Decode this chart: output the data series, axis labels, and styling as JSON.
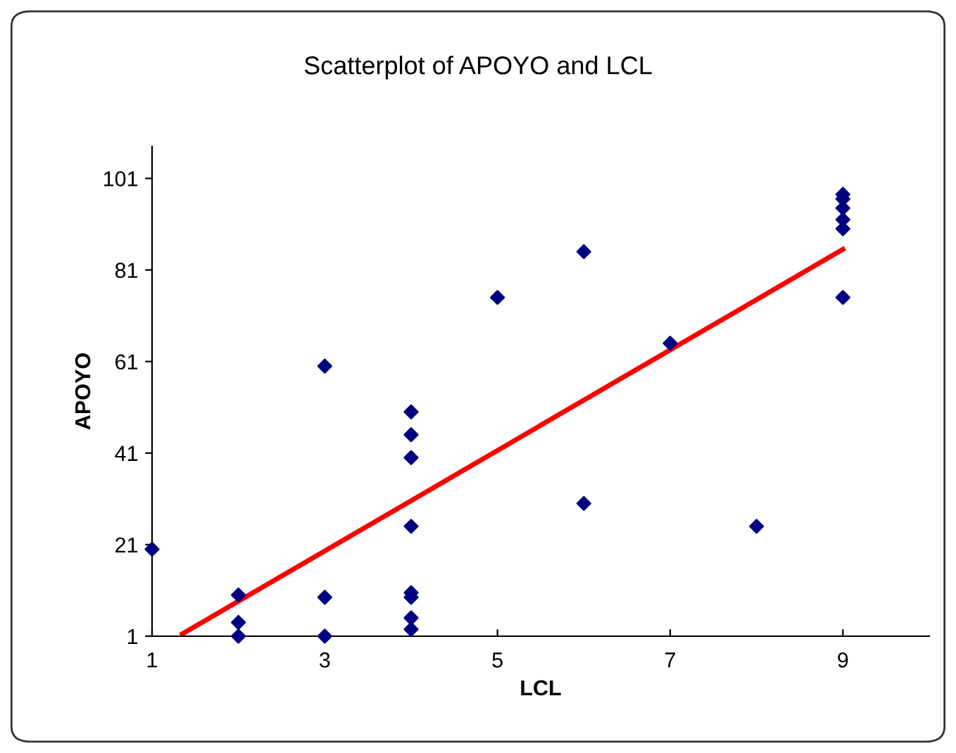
{
  "chart_data": {
    "type": "scatter",
    "title": "Scatterplot of APOYO and LCL",
    "xlabel": "LCL",
    "ylabel": "APOYO",
    "xlim": [
      1,
      10
    ],
    "xticks": [
      1,
      3,
      5,
      7,
      9
    ],
    "ylim": [
      1,
      108
    ],
    "yticks": [
      1,
      21,
      41,
      61,
      81,
      101
    ],
    "grid": false,
    "legend": false,
    "marker": "diamond",
    "series": [
      {
        "color": "#000080",
        "x": [
          1,
          2,
          2,
          2,
          3,
          3,
          3,
          4,
          4,
          4,
          4,
          4,
          4,
          4,
          4,
          5,
          6,
          6,
          7,
          8,
          9,
          9,
          9,
          9,
          9,
          9
        ],
        "values": [
          20,
          10,
          4,
          1,
          60,
          9.5,
          1,
          50,
          45,
          40,
          25,
          10.5,
          9.5,
          5,
          2.5,
          75,
          85,
          30,
          65,
          25,
          97.5,
          96.5,
          94.5,
          92,
          90,
          75
        ]
      },
      {
        "type": "line",
        "color": "#ff0000",
        "x": [
          1.35,
          9
        ],
        "values": [
          1.5,
          85.5
        ],
        "line_style": "solid",
        "marker": "none"
      }
    ]
  }
}
